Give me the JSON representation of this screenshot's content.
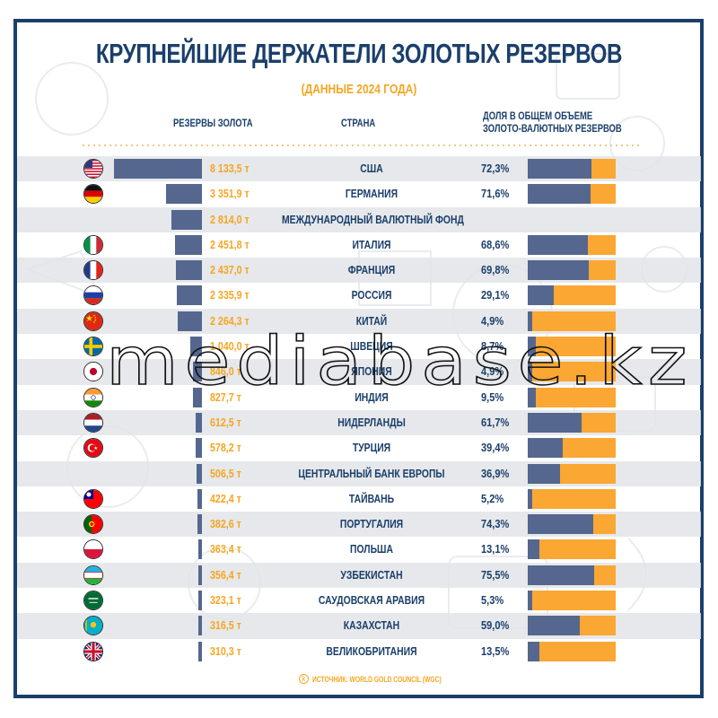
{
  "header": {
    "title": "КРУПНЕЙШИЕ ДЕРЖАТЕЛИ ЗОЛОТЫХ РЕЗЕРВОВ",
    "subtitle": "(ДАННЫЕ 2024 ГОДА)"
  },
  "columns": {
    "reserves": "РЕЗЕРВЫ ЗОЛОТА",
    "country": "СТРАНА",
    "share_line1": "ДОЛЯ В ОБЩЕМ ОБЪЕМЕ",
    "share_line2": "ЗОЛОТО-ВАЛЮТНЫХ РЕЗЕРВОВ"
  },
  "rows": [
    {
      "flag": "flag-usa-icon",
      "reserves_label": "8 133,5 т",
      "country": "США",
      "share_label": "72,3%"
    },
    {
      "flag": "flag-germany-icon",
      "reserves_label": "3 351,9 т",
      "country": "ГЕРМАНИЯ",
      "share_label": "71,6%"
    },
    {
      "flag": "",
      "reserves_label": "2 814,0 т",
      "country": "МЕЖДУНАРОДНЫЙ ВАЛЮТНЫЙ ФОНД",
      "share_label": ""
    },
    {
      "flag": "flag-italy-icon",
      "reserves_label": "2 451,8 т",
      "country": "ИТАЛИЯ",
      "share_label": "68,6%"
    },
    {
      "flag": "flag-france-icon",
      "reserves_label": "2 437,0 т",
      "country": "ФРАНЦИЯ",
      "share_label": "69,8%"
    },
    {
      "flag": "flag-russia-icon",
      "reserves_label": "2 335,9 т",
      "country": "РОССИЯ",
      "share_label": "29,1%"
    },
    {
      "flag": "flag-china-icon",
      "reserves_label": "2 264,3 т",
      "country": "КИТАЙ",
      "share_label": "4,9%"
    },
    {
      "flag": "flag-sweden-icon",
      "reserves_label": "1 040,0 т",
      "country": "ШВЕЦИЯ",
      "share_label": "8,7%"
    },
    {
      "flag": "flag-japan-icon",
      "reserves_label": "846,0 т",
      "country": "ЯПОНИЯ",
      "share_label": "4,9%"
    },
    {
      "flag": "flag-india-icon",
      "reserves_label": "827,7 т",
      "country": "ИНДИЯ",
      "share_label": "9,5%"
    },
    {
      "flag": "flag-netherlands-icon",
      "reserves_label": "612,5 т",
      "country": "НИДЕРЛАНДЫ",
      "share_label": "61,7%"
    },
    {
      "flag": "flag-turkey-icon",
      "reserves_label": "578,2 т",
      "country": "ТУРЦИЯ",
      "share_label": "39,4%"
    },
    {
      "flag": "",
      "reserves_label": "506,5 т",
      "country": "ЦЕНТРАЛЬНЫЙ БАНК ЕВРОПЫ",
      "share_label": "36,9%"
    },
    {
      "flag": "flag-taiwan-icon",
      "reserves_label": "422,4 т",
      "country": "ТАЙВАНЬ",
      "share_label": "5,2%"
    },
    {
      "flag": "flag-portugal-icon",
      "reserves_label": "382,6 т",
      "country": "ПОРТУГАЛИЯ",
      "share_label": "74,3%"
    },
    {
      "flag": "flag-poland-icon",
      "reserves_label": "363,4 т",
      "country": "ПОЛЬША",
      "share_label": "13,1%"
    },
    {
      "flag": "flag-uzbekistan-icon",
      "reserves_label": "356,4 т",
      "country": "УЗБЕКИСТАН",
      "share_label": "75,5%"
    },
    {
      "flag": "flag-saudi-arabia-icon",
      "reserves_label": "323,1 т",
      "country": "САУДОВСКАЯ АРАВИЯ",
      "share_label": "5,3%"
    },
    {
      "flag": "flag-kazakhstan-icon",
      "reserves_label": "316,5 т",
      "country": "КАЗАХСТАН",
      "share_label": "59,0%"
    },
    {
      "flag": "flag-uk-icon",
      "reserves_label": "310,3 т",
      "country": "ВЕЛИКОБРИТАНИЯ",
      "share_label": "13,5%"
    }
  ],
  "footer": {
    "source_icon": "k-logo-icon",
    "source": "ИСТОЧНИК: WORLD GOLD COUNCIL (WGC)"
  },
  "watermark": "mediabase.kz",
  "colors": {
    "navy": "#1b3f6b",
    "gold": "#f5a623",
    "bar_blue": "#55678e",
    "bar_orange": "#fba733",
    "stripe": "#e2e4e7"
  },
  "chart_data": {
    "type": "bar",
    "title": "КРУПНЕЙШИЕ ДЕРЖАТЕЛИ ЗОЛОТЫХ РЕЗЕРВОВ",
    "subtitle": "(ДАННЫЕ 2024 ГОДА)",
    "orientation": "horizontal",
    "categories": [
      "США",
      "ГЕРМАНИЯ",
      "МЕЖДУНАРОДНЫЙ ВАЛЮТНЫЙ ФОНД",
      "ИТАЛИЯ",
      "ФРАНЦИЯ",
      "РОССИЯ",
      "КИТАЙ",
      "ШВЕЦИЯ",
      "ЯПОНИЯ",
      "ИНДИЯ",
      "НИДЕРЛАНДЫ",
      "ТУРЦИЯ",
      "ЦЕНТРАЛЬНЫЙ БАНК ЕВРОПЫ",
      "ТАЙВАНЬ",
      "ПОРТУГАЛИЯ",
      "ПОЛЬША",
      "УЗБЕКИСТАН",
      "САУДОВСКАЯ АРАВИЯ",
      "КАЗАХСТАН",
      "ВЕЛИКОБРИТАНИЯ"
    ],
    "series": [
      {
        "name": "РЕЗЕРВЫ ЗОЛОТА (т)",
        "values": [
          8133.5,
          3351.9,
          2814.0,
          2451.8,
          2437.0,
          2335.9,
          2264.3,
          1040.0,
          846.0,
          827.7,
          612.5,
          578.2,
          506.5,
          422.4,
          382.6,
          363.4,
          356.4,
          323.1,
          316.5,
          310.3
        ]
      },
      {
        "name": "ДОЛЯ В ОБЩЕМ ОБЪЕМЕ ЗОЛОТО-ВАЛЮТНЫХ РЕЗЕРВОВ (%)",
        "values": [
          72.3,
          71.6,
          null,
          68.6,
          69.8,
          29.1,
          4.9,
          8.7,
          4.9,
          9.5,
          61.7,
          39.4,
          36.9,
          5.2,
          74.3,
          13.1,
          75.5,
          5.3,
          59.0,
          13.5
        ]
      }
    ],
    "xlabel": "",
    "ylabel": "",
    "source": "ИСТОЧНИК: WORLD GOLD COUNCIL (WGC)",
    "legend": [
      "РЕЗЕРВЫ ЗОЛОТА",
      "СТРАНА",
      "ДОЛЯ В ОБЩЕМ ОБЪЕМЕ ЗОЛОТО-ВАЛЮТНЫХ РЕЗЕРВОВ"
    ],
    "grid": false
  }
}
